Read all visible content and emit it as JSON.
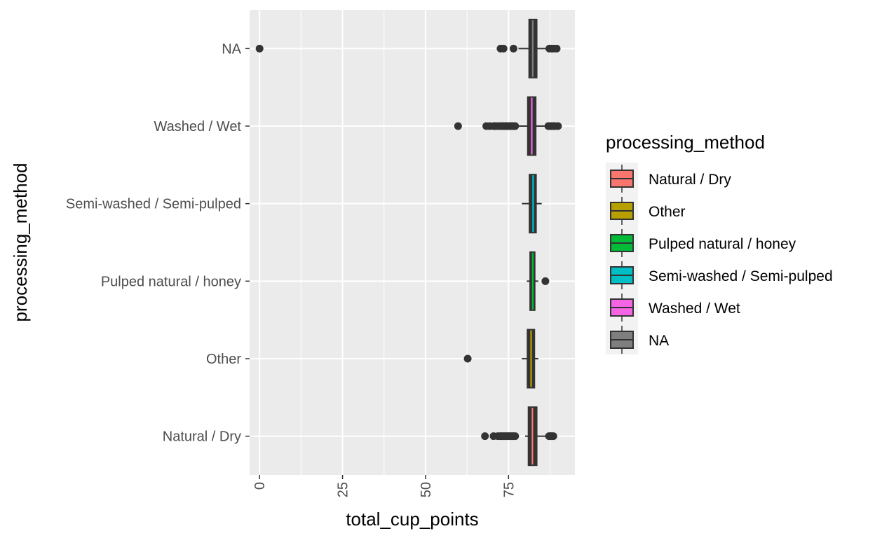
{
  "chart_data": {
    "type": "boxplot",
    "orientation": "horizontal",
    "title": "",
    "xlabel": "total_cup_points",
    "ylabel": "processing_method",
    "xlim": [
      -3,
      95
    ],
    "x_ticks": [
      0,
      25,
      50,
      75
    ],
    "x_tick_labels": [
      "0",
      "25",
      "50",
      "75"
    ],
    "grid": true,
    "legend": {
      "title": "processing_method",
      "position": "right",
      "entries": [
        {
          "label": "Natural / Dry",
          "color": "#F8766D"
        },
        {
          "label": "Other",
          "color": "#B79F00"
        },
        {
          "label": "Pulped natural / honey",
          "color": "#00BA38"
        },
        {
          "label": "Semi-washed / Semi-pulped",
          "color": "#00BFC4"
        },
        {
          "label": "Washed / Wet",
          "color": "#F564E3"
        },
        {
          "label": "NA",
          "color": "#7F7F7F"
        }
      ]
    },
    "categories": [
      "Natural / Dry",
      "Other",
      "Pulped natural / honey",
      "Semi-washed / Semi-pulped",
      "Washed / Wet",
      "NA"
    ],
    "series": [
      {
        "category": "Natural / Dry",
        "color": "#F8766D",
        "whisker_low": 80.0,
        "q1": 81.0,
        "median": 82.2,
        "q3": 83.5,
        "whisker_high": 86.5,
        "outliers": [
          67.9,
          70.5,
          71.8,
          72.5,
          73.0,
          73.5,
          74.0,
          74.5,
          75.0,
          75.5,
          76.0,
          76.5,
          77.0,
          87.2,
          87.6,
          88.0,
          88.5
        ]
      },
      {
        "category": "Other",
        "color": "#B79F00",
        "whisker_low": 79.0,
        "q1": 80.7,
        "median": 81.8,
        "q3": 82.8,
        "whisker_high": 84.0,
        "outliers": [
          62.7
        ]
      },
      {
        "category": "Pulped natural / honey",
        "color": "#00BA38",
        "whisker_low": 80.5,
        "q1": 81.5,
        "median": 82.3,
        "q3": 82.9,
        "whisker_high": 84.0,
        "outliers": [
          86.1
        ]
      },
      {
        "category": "Semi-washed / Semi-pulped",
        "color": "#00BFC4",
        "whisker_low": 79.0,
        "q1": 81.3,
        "median": 82.4,
        "q3": 83.3,
        "whisker_high": 85.0,
        "outliers": []
      },
      {
        "category": "Washed / Wet",
        "color": "#F564E3",
        "whisker_low": 77.8,
        "q1": 80.8,
        "median": 82.0,
        "q3": 83.2,
        "whisker_high": 86.5,
        "outliers": [
          59.8,
          68.3,
          69.3,
          70.5,
          71.0,
          71.8,
          72.5,
          73.0,
          73.5,
          74.0,
          74.5,
          75.0,
          75.5,
          76.0,
          76.5,
          77.0,
          87.0,
          87.5,
          88.0,
          88.5,
          89.0,
          89.9
        ]
      },
      {
        "category": "NA",
        "color": "#7F7F7F",
        "whisker_low": 78.0,
        "q1": 81.2,
        "median": 82.3,
        "q3": 83.5,
        "whisker_high": 86.5,
        "outliers": [
          0.0,
          72.6,
          73.5,
          76.5,
          87.3,
          88.0,
          88.6,
          89.5
        ]
      }
    ]
  }
}
